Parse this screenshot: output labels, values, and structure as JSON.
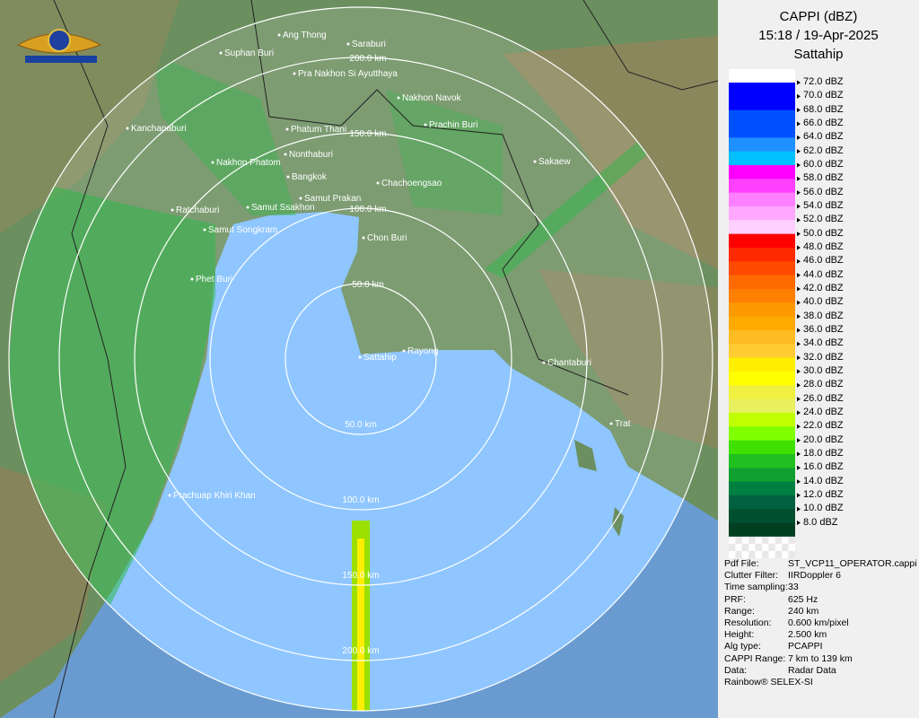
{
  "header": {
    "title": "CAPPI (dBZ)",
    "time": "15:18 / 19-Apr-2025",
    "site": "Sattahip"
  },
  "legend": [
    {
      "label": "72.0 dBZ",
      "color": "#0000ff"
    },
    {
      "label": "70.0 dBZ",
      "color": "#0000ff"
    },
    {
      "label": "68.0 dBZ",
      "color": "#0050ff"
    },
    {
      "label": "66.0 dBZ",
      "color": "#0050ff"
    },
    {
      "label": "64.0 dBZ",
      "color": "#1e90ff"
    },
    {
      "label": "62.0 dBZ",
      "color": "#00c0ff"
    },
    {
      "label": "60.0 dBZ",
      "color": "#ff00ff"
    },
    {
      "label": "58.0 dBZ",
      "color": "#ff40ff"
    },
    {
      "label": "56.0 dBZ",
      "color": "#ff80ff"
    },
    {
      "label": "54.0 dBZ",
      "color": "#ffa8ff"
    },
    {
      "label": "52.0 dBZ",
      "color": "#ffd0ff"
    },
    {
      "label": "50.0 dBZ",
      "color": "#ff0000"
    },
    {
      "label": "48.0 dBZ",
      "color": "#ff2a00"
    },
    {
      "label": "46.0 dBZ",
      "color": "#ff4a00"
    },
    {
      "label": "44.0 dBZ",
      "color": "#ff6a00"
    },
    {
      "label": "42.0 dBZ",
      "color": "#ff8000"
    },
    {
      "label": "40.0 dBZ",
      "color": "#ff9900"
    },
    {
      "label": "38.0 dBZ",
      "color": "#ffaa00"
    },
    {
      "label": "36.0 dBZ",
      "color": "#ffbb22"
    },
    {
      "label": "34.0 dBZ",
      "color": "#ffcc33"
    },
    {
      "label": "32.0 dBZ",
      "color": "#ffee00"
    },
    {
      "label": "30.0 dBZ",
      "color": "#ffff00"
    },
    {
      "label": "28.0 dBZ",
      "color": "#f0f040"
    },
    {
      "label": "26.0 dBZ",
      "color": "#e8f060"
    },
    {
      "label": "24.0 dBZ",
      "color": "#c0ff00"
    },
    {
      "label": "22.0 dBZ",
      "color": "#80ff00"
    },
    {
      "label": "20.0 dBZ",
      "color": "#40e000"
    },
    {
      "label": "18.0 dBZ",
      "color": "#20c020"
    },
    {
      "label": "16.0 dBZ",
      "color": "#10a030"
    },
    {
      "label": "14.0 dBZ",
      "color": "#008040"
    },
    {
      "label": "12.0 dBZ",
      "color": "#006040"
    },
    {
      "label": "10.0 dBZ",
      "color": "#005030"
    },
    {
      "label": "8.0 dBZ",
      "color": "#004020"
    }
  ],
  "info": [
    [
      "Pdf File:",
      "ST_VCP11_OPERATOR.cappi"
    ],
    [
      "Clutter Filter:",
      "IIRDoppler 6"
    ],
    [
      "Time sampling:",
      "33"
    ],
    [
      "PRF:",
      "625 Hz"
    ],
    [
      "Range:",
      "240 km"
    ],
    [
      "Resolution:",
      "0.600 km/pixel"
    ],
    [
      "Height:",
      "2.500 km"
    ],
    [
      "Alg type:",
      "PCAPPI"
    ],
    [
      "CAPPI Range:",
      "7 km to 139 km"
    ],
    [
      "Data:",
      "Radar Data"
    ]
  ],
  "credit": "Rainbow® SELEX-SI",
  "rings": [
    "50.0 km",
    "100.0 km",
    "150.0 km",
    "200.0 km"
  ],
  "places": [
    "Ang Thong",
    "Saraburi",
    "Suphan Buri",
    "Pra Nakhon Si Ayutthaya",
    "Nakhon Navok",
    "Prachin Buri",
    "Kanchanaburi",
    "Phatum Thani",
    "Nonthaburi",
    "Nakhon Phatom",
    "Sakaew",
    "Bangkok",
    "Chachoengsao",
    "Samut Prakan",
    "Ratchaburi",
    "Samut Ssakhon",
    "Samut Songkram",
    "Chon Buri",
    "Phet Buri",
    "Sattahip",
    "Rayong",
    "Chantaburi",
    "Trat",
    "Prachuap Khiri Khan"
  ]
}
